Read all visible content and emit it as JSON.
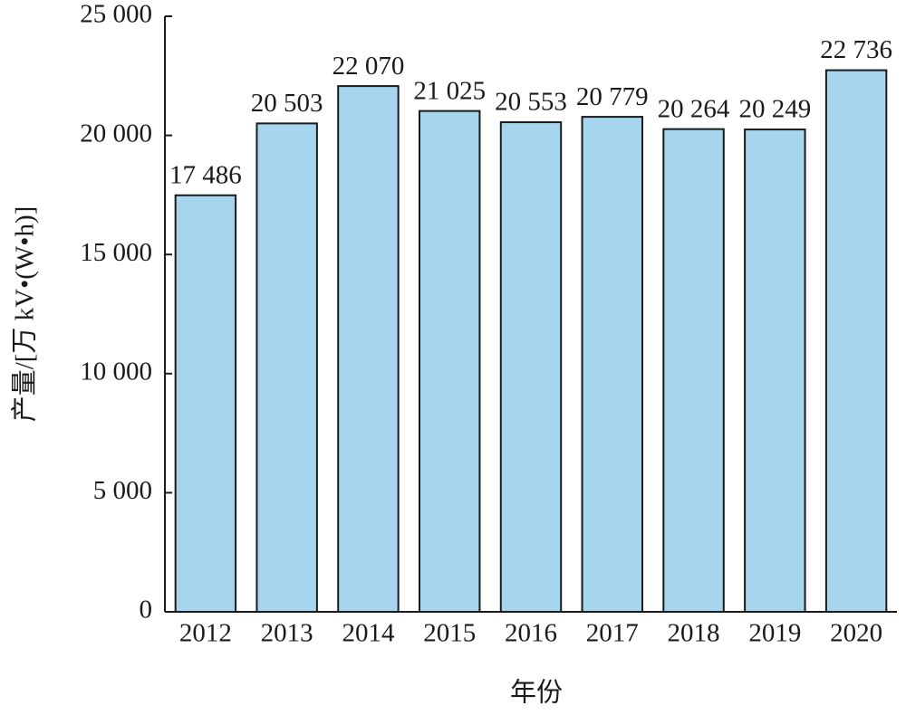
{
  "chart_data": {
    "type": "bar",
    "x_label": "年份",
    "y_label": "产量/[万 kV•(W•h)]",
    "categories": [
      "2012",
      "2013",
      "2014",
      "2015",
      "2016",
      "2017",
      "2018",
      "2019",
      "2020"
    ],
    "values": [
      17486,
      20503,
      22070,
      21025,
      20553,
      20779,
      20264,
      20249,
      22736
    ],
    "value_labels": [
      "17 486",
      "20 503",
      "22 070",
      "21 025",
      "20 553",
      "20 779",
      "20 264",
      "20 249",
      "22 736"
    ],
    "color": "#a6d5ee",
    "ylim": [
      0,
      25000
    ],
    "yticks": [
      {
        "value": 0,
        "label": "0"
      },
      {
        "value": 5000,
        "label": "5 000"
      },
      {
        "value": 10000,
        "label": "10 000"
      },
      {
        "value": 15000,
        "label": "15 000"
      },
      {
        "value": 20000,
        "label": "20 000"
      },
      {
        "value": 25000,
        "label": "25 000"
      }
    ],
    "grid": false
  }
}
